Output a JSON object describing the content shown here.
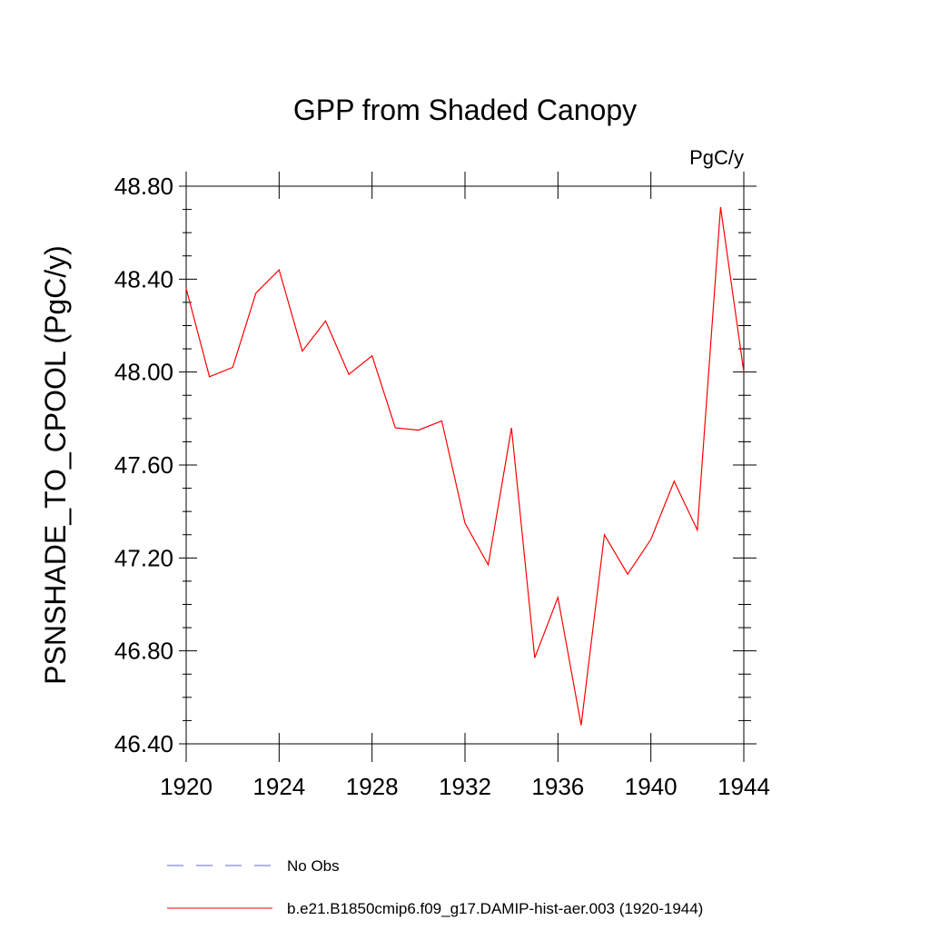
{
  "chart_data": {
    "type": "line",
    "title": "GPP from Shaded Canopy",
    "units_label": "PgC/y",
    "ylabel": "PSNSHADE_TO_CPOOL  (PgC/y)",
    "xlabel": "",
    "xlim": [
      1920,
      1944
    ],
    "ylim": [
      46.4,
      48.8
    ],
    "x_ticks": [
      "1920",
      "1924",
      "1928",
      "1932",
      "1936",
      "1940",
      "1944"
    ],
    "y_ticks": [
      "46.40",
      "46.80",
      "47.20",
      "47.60",
      "48.00",
      "48.40",
      "48.80"
    ],
    "grid": false,
    "legend_position": "bottom",
    "series": [
      {
        "name": "b.e21.B1850cmip6.f09_g17.DAMIP-hist-aer.003 (1920-1944)",
        "color": "#ff0000",
        "style": "solid",
        "x": [
          1920,
          1921,
          1922,
          1923,
          1924,
          1925,
          1926,
          1927,
          1928,
          1929,
          1930,
          1931,
          1932,
          1933,
          1934,
          1935,
          1936,
          1937,
          1938,
          1939,
          1940,
          1941,
          1942,
          1943,
          1944
        ],
        "values": [
          48.36,
          47.98,
          48.02,
          48.34,
          48.44,
          48.09,
          48.22,
          47.99,
          48.07,
          47.76,
          47.75,
          47.79,
          47.35,
          47.17,
          47.76,
          46.77,
          47.03,
          46.48,
          47.3,
          47.13,
          47.28,
          47.53,
          47.32,
          48.71,
          48.0
        ]
      }
    ],
    "legend": [
      {
        "label": "No Obs",
        "color": "#6666cc",
        "style": "dashed"
      },
      {
        "label": "b.e21.B1850cmip6.f09_g17.DAMIP-hist-aer.003 (1920-1944)",
        "color": "#ff0000",
        "style": "solid"
      }
    ]
  }
}
